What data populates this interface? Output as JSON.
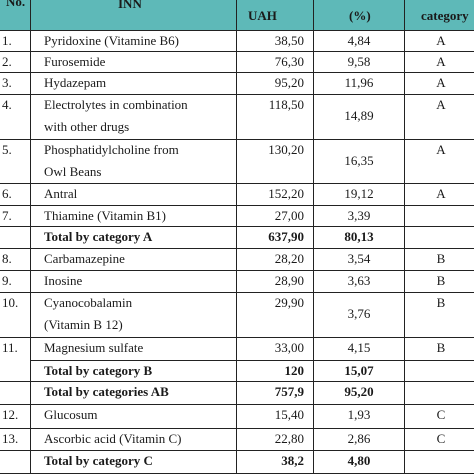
{
  "header": {
    "no": "No.",
    "inn": "INN",
    "uah": "UAH",
    "pct": "(%)",
    "category": "category"
  },
  "rows": [
    {
      "no": "1.",
      "inn": [
        "Pyridoxine (Vitamine  B6)"
      ],
      "uah": "38,50",
      "pct": "4,84",
      "cat": "A"
    },
    {
      "no": "2.",
      "inn": [
        "Furosemide"
      ],
      "uah": "76,30",
      "pct": "9,58",
      "cat": "A"
    },
    {
      "no": "3.",
      "inn": [
        "Hydazepam"
      ],
      "uah": "95,20",
      "pct": "11,96",
      "cat": "A"
    },
    {
      "no": "4.",
      "inn": [
        "Electrolytes in combination",
        "with other drugs"
      ],
      "uah": "118,50",
      "pct": "14,89",
      "cat": "A"
    },
    {
      "no": "5.",
      "inn": [
        "Phosphatidylcholine from",
        "Owl Beans"
      ],
      "uah": "130,20",
      "pct": "16,35",
      "cat": "A"
    },
    {
      "no": "6.",
      "inn": [
        "Antral"
      ],
      "uah": "152,20",
      "pct": "19,12",
      "cat": "A"
    },
    {
      "no": "7.",
      "inn": [
        "Thiamine (Vitamin B1)"
      ],
      "uah": "27,00",
      "pct": "3,39",
      "cat": ""
    },
    {
      "no": "",
      "inn": [
        "Total by category A"
      ],
      "uah": "637,90",
      "pct": "80,13",
      "cat": "",
      "bold": true
    },
    {
      "no": "8.",
      "inn": [
        "Carbamazepine"
      ],
      "uah": "28,20",
      "pct": "3,54",
      "cat": "B"
    },
    {
      "no": "9.",
      "inn": [
        "Inosine"
      ],
      "uah": "28,90",
      "pct": "3,63",
      "cat": "B"
    },
    {
      "no": "10.",
      "inn": [
        "Cyanocobalamin",
        "(Vitamin B 12)"
      ],
      "uah": "29,90",
      "pct": "3,76",
      "cat": "B"
    },
    {
      "no": "11.",
      "inn": [
        "Magnesium sulfate"
      ],
      "uah": "33,00",
      "pct": "4,15",
      "cat": "B"
    },
    {
      "no": "",
      "inn": [
        "Total by category B"
      ],
      "uah": "120",
      "pct": "15,07",
      "cat": "",
      "bold": true
    },
    {
      "no": "",
      "inn": [
        "Total by categories AB"
      ],
      "uah": "757,9",
      "pct": "95,20",
      "cat": "",
      "bold": true
    },
    {
      "no": "12.",
      "inn": [
        "Glucosum"
      ],
      "uah": "15,40",
      "pct": "1,93",
      "cat": "C"
    },
    {
      "no": "13.",
      "inn": [
        "Ascorbic acid (Vitamin C)"
      ],
      "uah": "22,80",
      "pct": "2,86",
      "cat": "C"
    },
    {
      "no": "",
      "inn": [
        "Total by category C"
      ],
      "uah": "38,2",
      "pct": "4,80",
      "cat": "",
      "bold": true
    }
  ]
}
